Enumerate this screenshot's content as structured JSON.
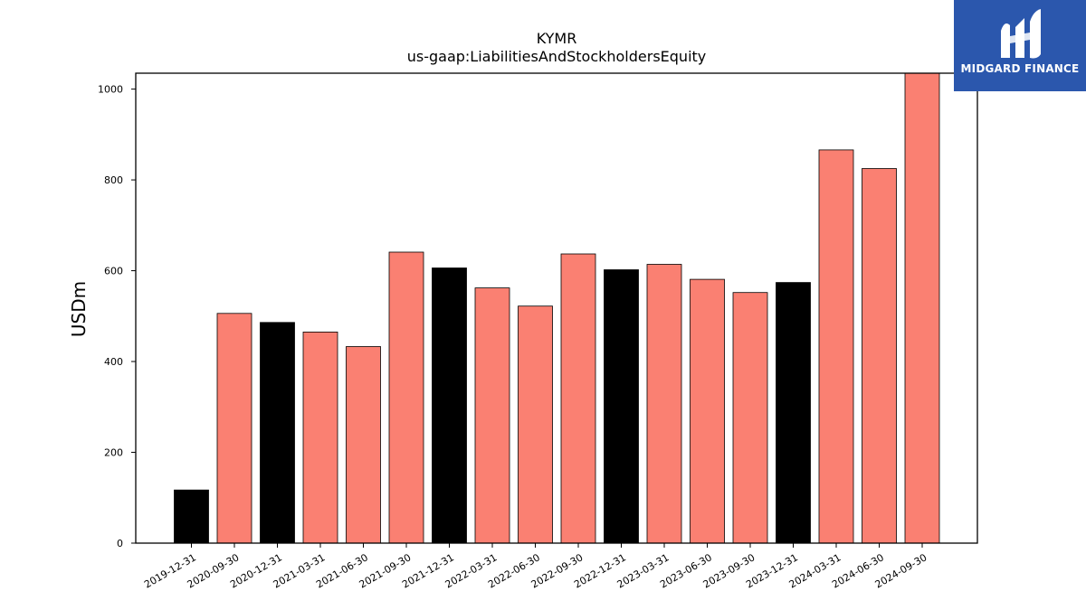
{
  "chart_data": {
    "type": "bar",
    "title": "KYMR",
    "subtitle": "us-gaap:LiabilitiesAndStockholdersEquity",
    "xlabel": "",
    "ylabel": "USDm",
    "ylim": [
      0,
      1035
    ],
    "yticks": [
      0,
      200,
      400,
      600,
      800,
      1000
    ],
    "grid": false,
    "categories": [
      "2019-12-31",
      "2020-09-30",
      "2020-12-31",
      "2021-03-31",
      "2021-06-30",
      "2021-09-30",
      "2021-12-31",
      "2022-03-31",
      "2022-06-30",
      "2022-09-30",
      "2022-12-31",
      "2023-03-31",
      "2023-06-30",
      "2023-09-30",
      "2023-12-31",
      "2024-03-31",
      "2024-06-30",
      "2024-09-30"
    ],
    "values": [
      117,
      506,
      486,
      465,
      433,
      641,
      606,
      562,
      522,
      637,
      602,
      614,
      581,
      552,
      574,
      866,
      825,
      1035
    ],
    "bar_colors": [
      "#000000",
      "#fa8072",
      "#000000",
      "#fa8072",
      "#fa8072",
      "#fa8072",
      "#000000",
      "#fa8072",
      "#fa8072",
      "#fa8072",
      "#000000",
      "#fa8072",
      "#fa8072",
      "#fa8072",
      "#000000",
      "#fa8072",
      "#fa8072",
      "#fa8072"
    ]
  },
  "logo": {
    "text": "MIDGARD FINANCE",
    "background": "#2b57ad"
  }
}
